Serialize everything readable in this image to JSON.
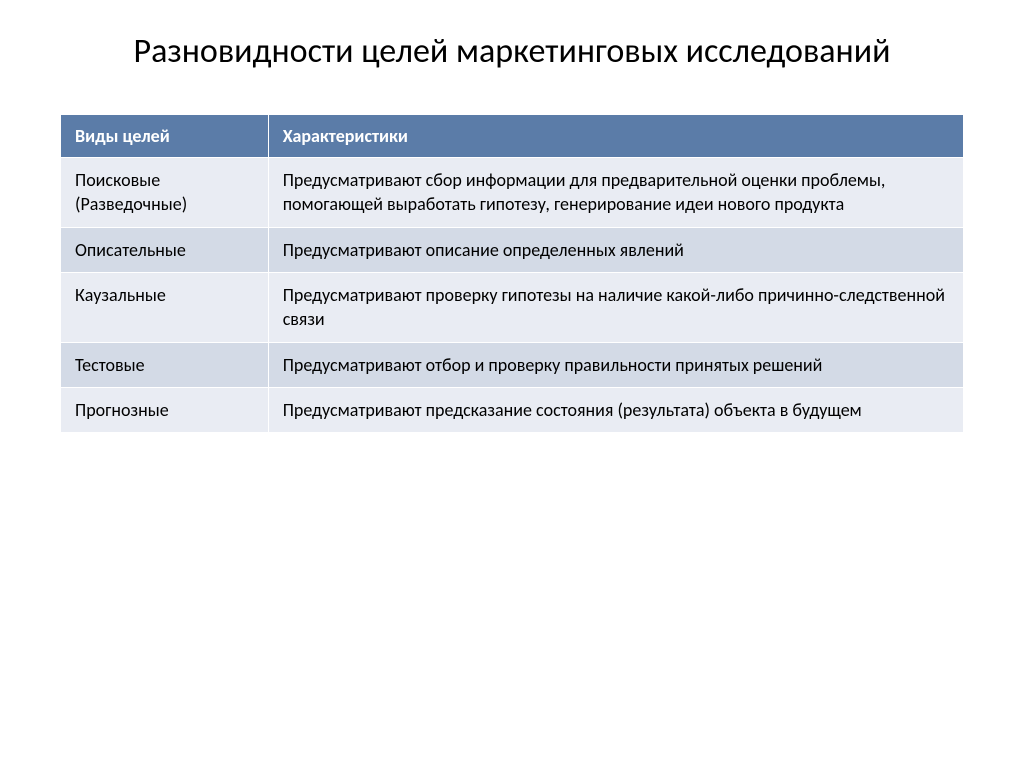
{
  "title": "Разновидности целей маркетинговых исследований",
  "table": {
    "type": "table",
    "header_bg_color": "#5b7ca8",
    "header_text_color": "#ffffff",
    "row_odd_bg": "#e9ecf3",
    "row_even_bg": "#d3dae6",
    "text_color": "#000000",
    "font_size_header": 18,
    "font_size_body": 18,
    "columns": [
      {
        "label": "Виды целей",
        "width_pct": 23
      },
      {
        "label": "Характеристики",
        "width_pct": 77
      }
    ],
    "rows": [
      {
        "type": "Поисковые (Разведочные)",
        "desc": "Предусматривают сбор информации для предварительной оценки проблемы, помогающей выработать гипотезу, генерирование идеи нового продукта"
      },
      {
        "type": "Описательные",
        "desc": "Предусматривают описание определенных явлений"
      },
      {
        "type": "Каузальные",
        "desc": "Предусматривают проверку гипотезы на наличие какой-либо причинно-следственной связи"
      },
      {
        "type": "Тестовые",
        "desc": "Предусматривают отбор и проверку правильности принятых решений"
      },
      {
        "type": "Прогнозные",
        "desc": "Предусматривают предсказание состояния (результата) объекта в будущем"
      }
    ]
  }
}
